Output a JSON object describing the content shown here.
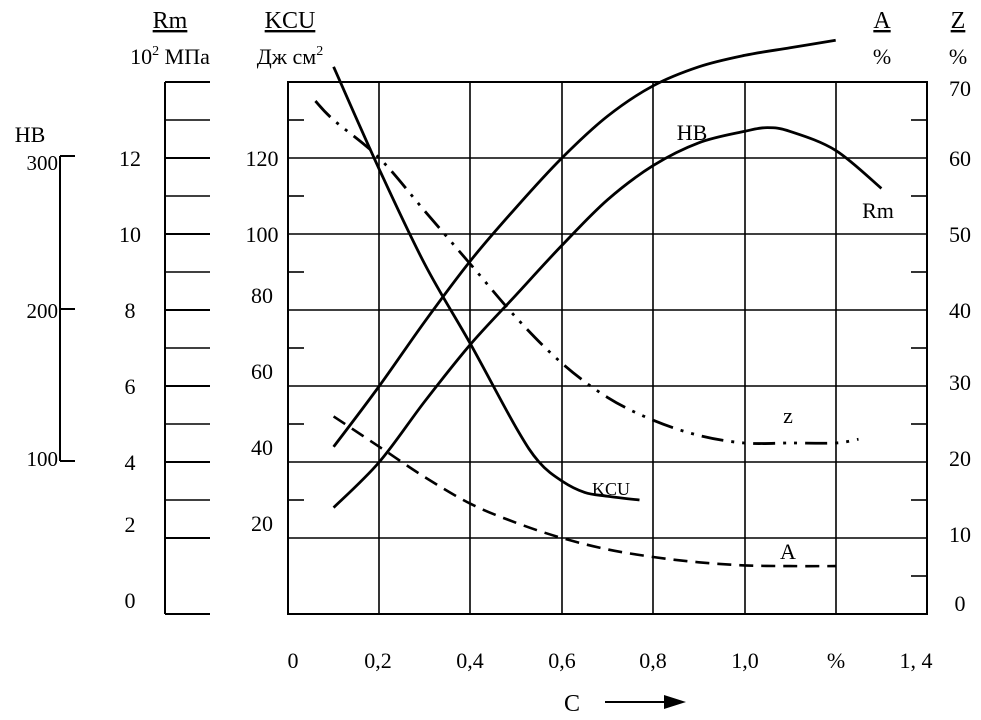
{
  "chart_data": {
    "type": "line",
    "title": "",
    "xlabel": "C",
    "xlim": [
      0,
      1.4
    ],
    "x_ticks": [
      "0",
      "0,2",
      "0,4",
      "0,6",
      "0,8",
      "1,0",
      "%",
      "1, 4"
    ],
    "grid": true,
    "axes": {
      "hb": {
        "ticks": [
          "300",
          "200",
          "100"
        ]
      },
      "rm": {
        "label": "Rm",
        "unit_base": "10",
        "unit_exp": "2",
        "unit_rest": " МПа",
        "ticks": [
          "0",
          "2",
          "4",
          "6",
          "8",
          "10",
          "12"
        ]
      },
      "kcu": {
        "label": "KCU",
        "unit_main": "Дж см",
        "unit_exp": "2",
        "ticks": [
          "20",
          "40",
          "60",
          "80",
          "100",
          "120"
        ]
      },
      "a": {
        "label": "A",
        "unit": "%"
      },
      "z": {
        "label": "Z",
        "unit": "%",
        "ticks": [
          "0",
          "10",
          "20",
          "30",
          "40",
          "50",
          "60",
          "70"
        ]
      },
      "hb_axis_label": "HB"
    },
    "series": [
      {
        "name": "HB",
        "label": "HB",
        "style": "solid",
        "x": [
          0.1,
          0.2,
          0.3,
          0.4,
          0.5,
          0.6,
          0.7,
          0.8,
          0.9,
          1.0,
          1.1,
          1.2
        ],
        "y": [
          22,
          30,
          38.5,
          46.5,
          53.5,
          60,
          65.5,
          69.5,
          72,
          73.5,
          74.5,
          75.5
        ]
      },
      {
        "name": "Rm",
        "label": "Rm",
        "style": "solid",
        "x": [
          0.1,
          0.2,
          0.3,
          0.4,
          0.5,
          0.6,
          0.7,
          0.8,
          0.9,
          1.0,
          1.05,
          1.1,
          1.2,
          1.3
        ],
        "y": [
          14,
          20,
          28,
          35.5,
          42,
          48.5,
          54.5,
          59,
          62,
          63.5,
          64,
          63.5,
          61,
          56
        ]
      },
      {
        "name": "KCU",
        "label": "KCU",
        "style": "solid",
        "x": [
          0.1,
          0.2,
          0.3,
          0.4,
          0.5,
          0.55,
          0.6,
          0.65,
          0.7,
          0.77
        ],
        "y": [
          72,
          58.5,
          46,
          35.5,
          24.5,
          20,
          17.5,
          16,
          15.5,
          15
        ]
      },
      {
        "name": "Z",
        "label": "z",
        "style": "dashdotdot",
        "x": [
          0.06,
          0.1,
          0.2,
          0.3,
          0.4,
          0.5,
          0.6,
          0.7,
          0.8,
          0.9,
          1.0,
          1.1,
          1.2,
          1.25
        ],
        "y": [
          67.5,
          65,
          60,
          53,
          46,
          39,
          33,
          28.5,
          25.5,
          23.5,
          22.5,
          22.5,
          22.5,
          23
        ]
      },
      {
        "name": "A",
        "label": "A",
        "style": "dashed",
        "x": [
          0.1,
          0.2,
          0.3,
          0.4,
          0.5,
          0.6,
          0.7,
          0.8,
          0.9,
          1.0,
          1.1,
          1.2
        ],
        "y": [
          26,
          22,
          18,
          14.5,
          12,
          10,
          8.5,
          7.5,
          6.8,
          6.4,
          6.3,
          6.3
        ]
      }
    ]
  }
}
